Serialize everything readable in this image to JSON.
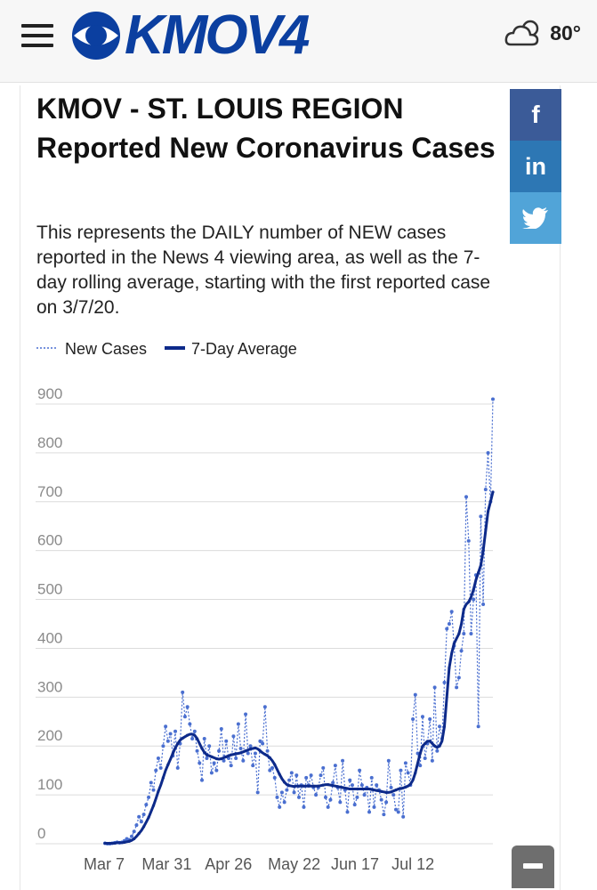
{
  "header": {
    "menu_icon": "hamburger-menu-icon",
    "logo_text": "KMOV4",
    "weather_icon": "cloudy-icon",
    "temperature": "80°"
  },
  "article": {
    "title": "KMOV - ST. LOUIS REGION Reported New Coronavirus Cases",
    "description": "This represents the DAILY number of NEW cases reported in the News 4 viewing area, as well as the 7-day rolling average, starting with the first reported case on 3/7/20."
  },
  "social": {
    "facebook_icon": "facebook-icon",
    "linkedin_icon": "linkedin-icon",
    "twitter_icon": "twitter-icon",
    "facebook_color": "#3b5b98",
    "linkedin_color": "#2d77b4",
    "twitter_color": "#51a4d8"
  },
  "chart_data": {
    "type": "line",
    "title": "",
    "xlabel": "",
    "ylabel": "",
    "ylim": [
      0,
      900
    ],
    "yticks": [
      0,
      100,
      200,
      300,
      400,
      500,
      600,
      700,
      800,
      900
    ],
    "xticks": [
      "Mar 7",
      "Mar 31",
      "Apr 26",
      "May 22",
      "Jun 17",
      "Jul 12"
    ],
    "grid": true,
    "legend_position": "top-left",
    "start_date": "2020-03-07",
    "series": [
      {
        "name": "New Cases",
        "style": "dotted",
        "color": "#4a6fd0",
        "values": [
          1,
          0,
          0,
          1,
          2,
          3,
          2,
          3,
          6,
          10,
          8,
          15,
          25,
          38,
          55,
          45,
          60,
          80,
          95,
          125,
          110,
          150,
          175,
          155,
          200,
          240,
          210,
          225,
          180,
          230,
          155,
          205,
          310,
          260,
          280,
          245,
          215,
          230,
          190,
          165,
          130,
          215,
          175,
          200,
          145,
          165,
          150,
          190,
          235,
          170,
          210,
          175,
          160,
          220,
          175,
          245,
          195,
          170,
          265,
          185,
          200,
          160,
          185,
          105,
          210,
          205,
          280,
          190,
          150,
          155,
          135,
          95,
          75,
          105,
          85,
          110,
          130,
          145,
          105,
          140,
          95,
          120,
          75,
          135,
          120,
          140,
          115,
          100,
          115,
          140,
          155,
          95,
          75,
          90,
          125,
          160,
          115,
          85,
          170,
          110,
          65,
          130,
          120,
          80,
          95,
          150,
          120,
          100,
          115,
          65,
          135,
          75,
          120,
          110,
          90,
          60,
          85,
          170,
          115,
          100,
          70,
          65,
          150,
          55,
          165,
          145,
          120,
          255,
          305,
          185,
          160,
          260,
          175,
          205,
          255,
          170,
          320,
          190,
          240,
          215,
          330,
          440,
          450,
          475,
          405,
          320,
          340,
          395,
          430,
          710,
          620,
          430,
          500,
          550,
          240,
          670,
          490,
          725,
          800,
          700,
          910
        ],
        "note_x": "one value per day starting Mar 7"
      },
      {
        "name": "7-Day Average",
        "style": "solid",
        "color": "#0d2a8a",
        "values": [
          1,
          1,
          1,
          1,
          1,
          2,
          2,
          2,
          3,
          4,
          5,
          7,
          10,
          15,
          21,
          27,
          35,
          44,
          54,
          66,
          78,
          92,
          107,
          120,
          135,
          150,
          162,
          173,
          185,
          196,
          205,
          212,
          216,
          219,
          222,
          224,
          224,
          222,
          215,
          205,
          195,
          187,
          182,
          180,
          178,
          176,
          174,
          173,
          174,
          176,
          178,
          180,
          182,
          183,
          184,
          185,
          186,
          188,
          190,
          192,
          194,
          195,
          196,
          194,
          190,
          186,
          183,
          180,
          176,
          170,
          162,
          152,
          142,
          133,
          126,
          121,
          119,
          118,
          117,
          118,
          118,
          118,
          118,
          118,
          118,
          118,
          118,
          118,
          118,
          119,
          120,
          121,
          121,
          120,
          119,
          118,
          117,
          116,
          115,
          114,
          113,
          112,
          112,
          112,
          112,
          112,
          112,
          112,
          112,
          112,
          111,
          110,
          109,
          108,
          107,
          106,
          105,
          105,
          106,
          108,
          110,
          112,
          113,
          114,
          116,
          118,
          122,
          130,
          145,
          165,
          185,
          200,
          205,
          210,
          210,
          205,
          200,
          197,
          200,
          210,
          240,
          300,
          360,
          390,
          410,
          420,
          430,
          450,
          480,
          490,
          495,
          505,
          520,
          540,
          555,
          570,
          600,
          640,
          680,
          700,
          720
        ],
        "note_x": "one value per day starting Mar 7"
      }
    ]
  }
}
